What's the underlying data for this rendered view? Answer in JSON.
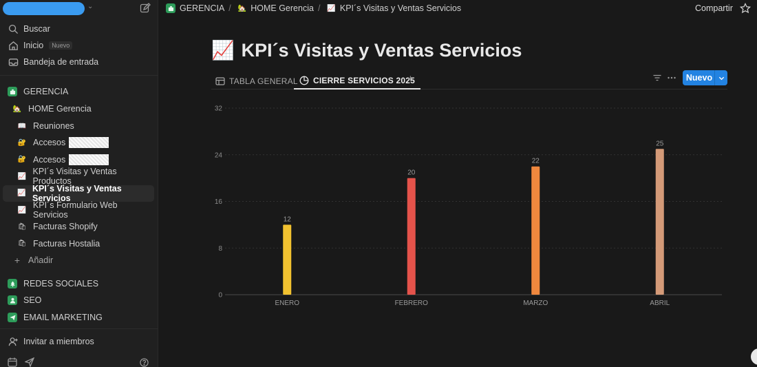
{
  "sidebar": {
    "top_nav": [
      {
        "label": "Buscar",
        "icon": "search-icon"
      },
      {
        "label": "Inicio",
        "icon": "home-icon",
        "badge": "Nuevo"
      },
      {
        "label": "Bandeja de entrada",
        "icon": "inbox-icon"
      }
    ],
    "teamspace": {
      "label": "GERENCIA",
      "color": "#2d9c5a"
    },
    "home": {
      "label": "HOME Gerencia"
    },
    "pages": [
      {
        "label": "Reuniones",
        "emoji": "📖"
      },
      {
        "label": "Accesos",
        "emoji": "🔐",
        "redacted": true
      },
      {
        "label": "Accesos",
        "emoji": "🔐",
        "redacted": true
      },
      {
        "label": "KPI´s Visitas y Ventas Productos",
        "emoji": "📈"
      },
      {
        "label": "KPI´s Visitas y Ventas Servicios",
        "emoji": "📈",
        "active": true
      },
      {
        "label": "KPI´s Formulario Web Servicios",
        "emoji": "📈"
      },
      {
        "label": "Facturas Shopify",
        "emoji": "🛍"
      },
      {
        "label": "Facturas Hostalia",
        "emoji": "🛍"
      }
    ],
    "add_label": "Añadir",
    "teamspaces": [
      {
        "label": "REDES SOCIALES",
        "color": "#2d9c5a"
      },
      {
        "label": "SEO",
        "color": "#2d9c5a"
      },
      {
        "label": "EMAIL MARKETING",
        "color": "#2d9c5a"
      }
    ],
    "invite_label": "Invitar a miembros"
  },
  "topbar": {
    "crumbs": [
      "GERENCIA",
      "HOME Gerencia",
      "KPI´s Visitas y Ventas Servicios"
    ],
    "share_label": "Compartir"
  },
  "page": {
    "title": "KPI´s Visitas y Ventas Servicios",
    "title_emoji": "📈",
    "tabs": [
      {
        "label": "TABLA GENERAL",
        "icon": "table-icon"
      },
      {
        "label": "CIERRE SERVICIOS 2025",
        "icon": "chart-icon",
        "active": true
      }
    ],
    "new_label": "Nuevo"
  },
  "chart_data": {
    "type": "bar",
    "categories": [
      "ENERO",
      "FEBRERO",
      "MARZO",
      "ABRIL"
    ],
    "values": [
      12,
      20,
      22,
      25
    ],
    "colors": [
      "#f2c230",
      "#e5534b",
      "#f0883e",
      "#d49a78"
    ],
    "yticks": [
      0,
      8,
      16,
      24,
      32
    ],
    "ylim": [
      0,
      32
    ],
    "grid": true,
    "title": "",
    "xlabel": "",
    "ylabel": ""
  }
}
